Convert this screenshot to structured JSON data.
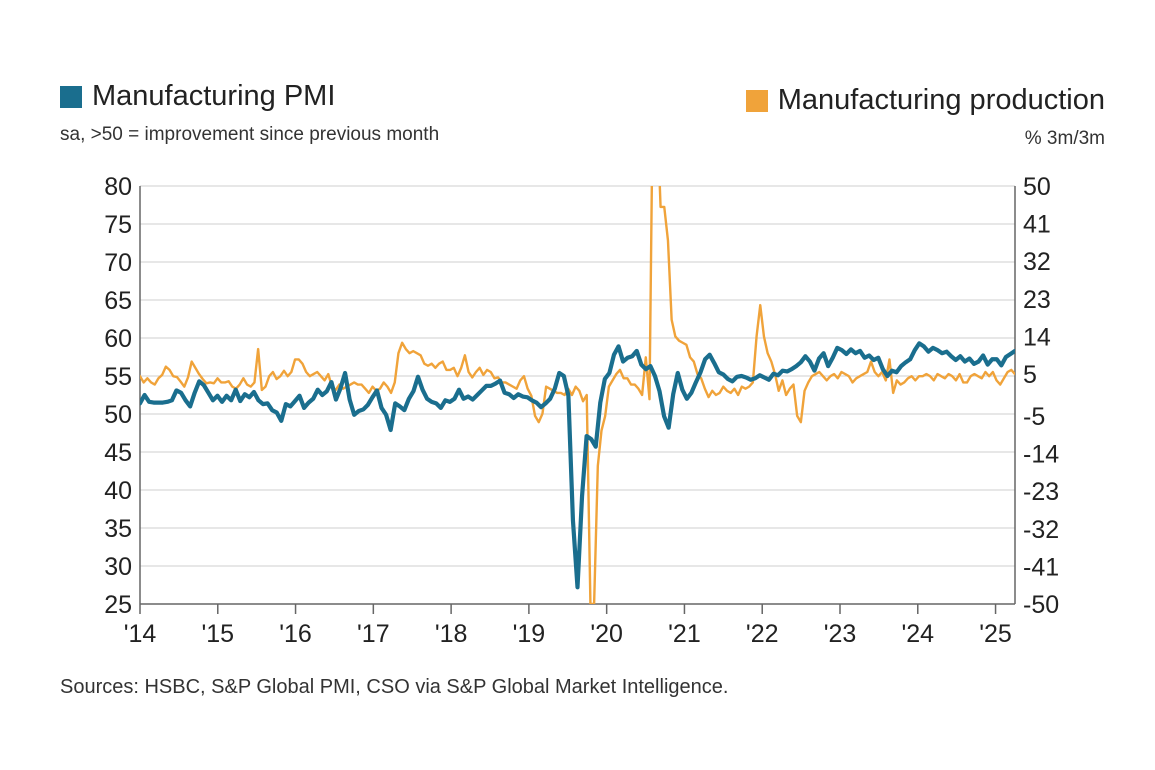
{
  "legend": {
    "left": {
      "label": "Manufacturing PMI",
      "subtitle": "sa, >50 = improvement since previous month",
      "color": "#1a6e8e"
    },
    "right": {
      "label": "Manufacturing production",
      "subtitle": "% 3m/3m",
      "color": "#f0a33a"
    }
  },
  "source": "Sources: HSBC, S&P Global PMI, CSO via S&P Global Market Intelligence.",
  "chart_data": {
    "type": "line",
    "x_start": "2014-01",
    "x_end": "2025-04",
    "x_ticks": [
      "'14",
      "'15",
      "'16",
      "'17",
      "'18",
      "'19",
      "'20",
      "'21",
      "'22",
      "'23",
      "'24",
      "'25"
    ],
    "y_left": {
      "ticks": [
        "80",
        "75",
        "70",
        "65",
        "60",
        "55",
        "50",
        "45",
        "40",
        "35",
        "30",
        "25"
      ],
      "ylim": [
        25,
        80
      ]
    },
    "y_right": {
      "ticks": [
        "50",
        "41",
        "32",
        "23",
        "14",
        "5",
        "-5",
        "-14",
        "-23",
        "-32",
        "-41",
        "-50"
      ],
      "ylim": [
        -50,
        50
      ]
    },
    "grid": true,
    "series": [
      {
        "name": "Manufacturing PMI",
        "axis": "left",
        "color": "#1a6e8e",
        "values": [
          51.4,
          52.5,
          51.6,
          51.5,
          51.5,
          51.5,
          51.6,
          51.8,
          53.1,
          52.8,
          51.8,
          51.0,
          52.8,
          54.3,
          53.8,
          52.8,
          51.8,
          52.4,
          51.6,
          52.4,
          51.8,
          53.2,
          51.7,
          52.6,
          52.2,
          52.9,
          51.8,
          51.3,
          51.4,
          50.5,
          50.2,
          49.1,
          51.3,
          51.0,
          51.7,
          52.4,
          50.8,
          51.5,
          52.0,
          53.2,
          52.5,
          53.0,
          54.2,
          51.9,
          53.4,
          55.4,
          51.9,
          49.9,
          50.4,
          50.6,
          51.2,
          52.2,
          53.1,
          50.8,
          49.9,
          47.9,
          51.4,
          51.0,
          50.5,
          52.0,
          53.0,
          54.9,
          53.2,
          52.0,
          51.6,
          51.4,
          50.8,
          51.8,
          51.6,
          52.0,
          53.2,
          52.0,
          52.3,
          51.9,
          52.5,
          53.1,
          53.7,
          53.7,
          54.0,
          54.4,
          52.8,
          52.6,
          52.1,
          52.6,
          52.3,
          52.2,
          51.8,
          51.5,
          50.9,
          51.4,
          52.0,
          53.3,
          55.4,
          55.0,
          52.4,
          36.0,
          27.2,
          39.2,
          47.1,
          46.7,
          45.7,
          51.5,
          54.6,
          55.4,
          57.8,
          58.9,
          56.9,
          57.4,
          57.6,
          58.3,
          56.5,
          55.9,
          56.3,
          55.0,
          53.0,
          49.7,
          48.2,
          52.6,
          55.4,
          53.2,
          52.0,
          52.8,
          54.2,
          55.5,
          57.2,
          57.8,
          56.7,
          55.5,
          55.2,
          54.6,
          54.3,
          54.9,
          55.0,
          54.8,
          54.5,
          54.7,
          55.1,
          54.8,
          54.5,
          55.3,
          55.1,
          55.7,
          55.6,
          55.9,
          56.3,
          56.8,
          57.6,
          56.9,
          55.7,
          57.3,
          58.0,
          56.3,
          57.4,
          58.7,
          58.4,
          57.9,
          58.5,
          58.0,
          58.3,
          57.4,
          57.7,
          57.1,
          57.4,
          55.9,
          55.0,
          55.7,
          55.5,
          56.3,
          56.8,
          57.2,
          58.4,
          59.3,
          58.9,
          58.2,
          58.7,
          58.4,
          58.0,
          58.2,
          57.6,
          57.1,
          57.6,
          56.9,
          57.3,
          56.6,
          56.9,
          57.7,
          56.5,
          57.2,
          57.2,
          56.4,
          57.5,
          57.9,
          58.3
        ]
      },
      {
        "name": "Manufacturing production",
        "axis": "right",
        "color": "#f0a33a",
        "values": [
          4.5,
          3.0,
          4.0,
          3.0,
          2.5,
          4.0,
          4.8,
          6.8,
          6.0,
          4.5,
          4.3,
          3.2,
          2.0,
          4.2,
          8.0,
          6.5,
          5.0,
          3.8,
          2.8,
          3.0,
          2.8,
          4.0,
          3.0,
          3.0,
          3.3,
          2.0,
          1.5,
          2.5,
          4.0,
          2.5,
          2.0,
          3.0,
          11.0,
          1.2,
          2.0,
          4.5,
          5.5,
          3.8,
          4.5,
          5.8,
          4.5,
          5.5,
          8.5,
          8.5,
          7.5,
          5.5,
          4.5,
          5.0,
          5.5,
          4.5,
          3.5,
          5.0,
          2.0,
          1.2,
          2.5,
          1.5,
          2.0,
          2.5,
          3.0,
          2.5,
          2.5,
          1.5,
          0.5,
          2.0,
          1.0,
          1.5,
          3.0,
          2.0,
          0.5,
          3.0,
          10.0,
          12.5,
          11.0,
          10.0,
          10.5,
          10.0,
          9.5,
          7.5,
          7.0,
          7.5,
          6.5,
          7.5,
          8.0,
          6.0,
          6.0,
          6.5,
          4.5,
          6.5,
          9.5,
          5.5,
          4.2,
          5.5,
          6.5,
          4.8,
          6.0,
          5.5,
          4.0,
          4.2,
          3.0,
          3.0,
          2.5,
          2.0,
          1.5,
          3.5,
          4.5,
          1.5,
          -0.2,
          -5.0,
          -6.5,
          -4.5,
          2.0,
          1.5,
          1.0,
          0.5,
          0.5,
          0.0,
          1.5,
          0.0,
          2.0,
          1.0,
          -1.5,
          0.0,
          -50.0,
          -50.0,
          -17.0,
          -8.5,
          -5.0,
          2.0,
          3.5,
          5.0,
          6.0,
          4.0,
          4.0,
          2.5,
          2.5,
          1.5,
          0.0,
          9.0,
          -1.0,
          80.0,
          69.0,
          45.0,
          45.0,
          37.0,
          18.0,
          14.0,
          13.0,
          12.5,
          12.0,
          9.0,
          8.0,
          5.0,
          4.0,
          1.5,
          -0.5,
          1.0,
          0.0,
          0.5,
          2.0,
          1.0,
          0.5,
          1.5,
          0.0,
          2.0,
          1.5,
          2.0,
          3.0,
          14.0,
          21.5,
          14.0,
          10.0,
          8.0,
          5.0,
          1.0,
          3.5,
          0.0,
          1.5,
          2.5,
          -5.0,
          -6.5,
          1.0,
          3.0,
          4.5,
          5.0,
          5.5,
          4.5,
          3.5,
          4.5,
          5.0,
          4.0,
          5.5,
          5.0,
          4.5,
          3.0,
          4.0,
          4.5,
          5.0,
          5.5,
          8.0,
          5.5,
          4.5,
          5.5,
          3.5,
          8.5,
          0.5,
          3.5,
          2.5,
          3.0,
          4.0,
          4.5,
          3.5,
          4.5,
          4.5,
          5.0,
          4.5,
          3.5,
          5.0,
          4.5,
          4.0,
          5.0,
          4.5,
          3.5,
          5.0,
          3.0,
          3.0,
          4.5,
          5.0,
          4.5,
          4.0,
          5.5,
          4.5,
          5.5,
          3.5,
          2.5,
          4.0,
          5.5,
          6.0,
          5.0
        ]
      }
    ]
  }
}
